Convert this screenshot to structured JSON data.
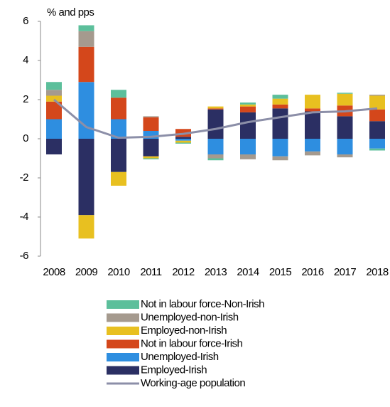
{
  "chart_data": {
    "type": "bar",
    "y_label": "% and pps",
    "categories": [
      "2008",
      "2009",
      "2010",
      "2011",
      "2012",
      "2013",
      "2014",
      "2015",
      "2016",
      "2017",
      "2018"
    ],
    "ylim": [
      -6,
      6
    ],
    "yticks": [
      -6,
      -4,
      -2,
      0,
      2,
      4,
      6
    ],
    "series": [
      {
        "name": "Employed-Irish",
        "color": "#2b2f63",
        "values": [
          -0.8,
          -3.9,
          -1.7,
          -0.9,
          0.1,
          1.5,
          1.35,
          1.55,
          1.4,
          1.15,
          0.9
        ]
      },
      {
        "name": "Unemployed-Irish",
        "color": "#2e8ee0",
        "values": [
          1.0,
          2.9,
          1.0,
          0.4,
          -0.1,
          -0.8,
          -0.8,
          -0.9,
          -0.65,
          -0.8,
          -0.5
        ]
      },
      {
        "name": "Not in labour force-Irish",
        "color": "#d4471b",
        "values": [
          0.9,
          1.8,
          1.1,
          0.7,
          0.4,
          0.05,
          0.3,
          0.2,
          0.15,
          0.55,
          0.6
        ]
      },
      {
        "name": "Employed-non-Irish",
        "color": "#e8c020",
        "values": [
          0.3,
          -1.2,
          -0.7,
          -0.1,
          -0.1,
          0.1,
          0.1,
          0.3,
          0.7,
          0.6,
          0.7
        ]
      },
      {
        "name": "Unemployed-non-Irish",
        "color": "#a59a8e",
        "values": [
          0.3,
          0.8,
          0,
          0.05,
          0,
          -0.2,
          -0.25,
          -0.2,
          -0.2,
          -0.15,
          0.05
        ]
      },
      {
        "name": "Not in labour force-Non-Irish",
        "color": "#5cbf9b",
        "values": [
          0.4,
          0.3,
          0.4,
          -0.05,
          -0.05,
          -0.1,
          0.1,
          0.2,
          0,
          0.05,
          -0.1
        ]
      },
      {
        "name": "Working-age population",
        "type": "line",
        "color": "#8c8fa8",
        "values": [
          2.0,
          0.6,
          0.05,
          0.1,
          0.25,
          0.5,
          0.85,
          1.1,
          1.35,
          1.4,
          1.55
        ]
      }
    ]
  }
}
